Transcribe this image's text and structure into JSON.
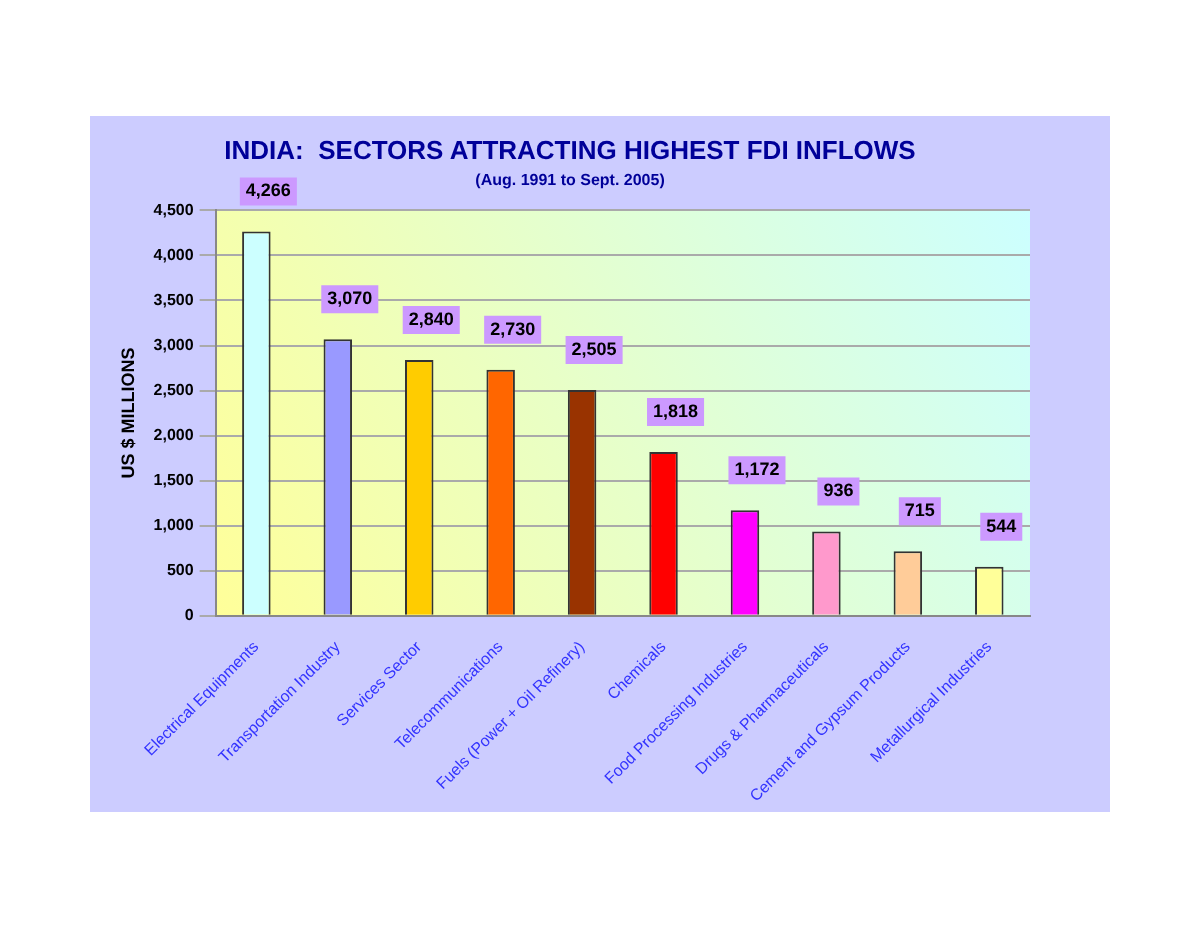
{
  "chart_data": {
    "type": "bar",
    "title": "INDIA:  SECTORS ATTRACTING HIGHEST FDI INFLOWS",
    "subtitle": "(Aug. 1991 to Sept. 2005)",
    "ylabel": "US $ MILLIONS",
    "categories": [
      "Electrical Equipments",
      "Transportation Industry",
      "Services Sector",
      "Telecommunications",
      "Fuels (Power + Oil Refinery)",
      "Chemicals",
      "Food Processing Industries",
      "Drugs & Pharmaceuticals",
      "Cement and Gypsum Products",
      "Metallurgical Industries"
    ],
    "values": [
      4266,
      3070,
      2840,
      2730,
      2505,
      1818,
      1172,
      936,
      715,
      544
    ],
    "value_labels": [
      "4,266",
      "3,070",
      "2,840",
      "2,730",
      "2,505",
      "1,818",
      "1,172",
      "936",
      "715",
      "544"
    ],
    "colors": [
      "#ccffff",
      "#9999ff",
      "#ffcc00",
      "#ff6600",
      "#993300",
      "#ff0000",
      "#ff00ff",
      "#ff99cc",
      "#ffcc99",
      "#ffff99"
    ],
    "ylim": [
      0,
      4500
    ],
    "yticks": [
      {
        "value": 0,
        "label": "0"
      },
      {
        "value": 500,
        "label": "500"
      },
      {
        "value": 1000,
        "label": "1,000"
      },
      {
        "value": 1500,
        "label": "1,500"
      },
      {
        "value": 2000,
        "label": "2,000"
      },
      {
        "value": 2500,
        "label": "2,500"
      },
      {
        "value": 3000,
        "label": "3,000"
      },
      {
        "value": 3500,
        "label": "3,500"
      },
      {
        "value": 4000,
        "label": "4,000"
      },
      {
        "value": 4500,
        "label": "4,500"
      }
    ],
    "grid": "y",
    "legend": false
  }
}
